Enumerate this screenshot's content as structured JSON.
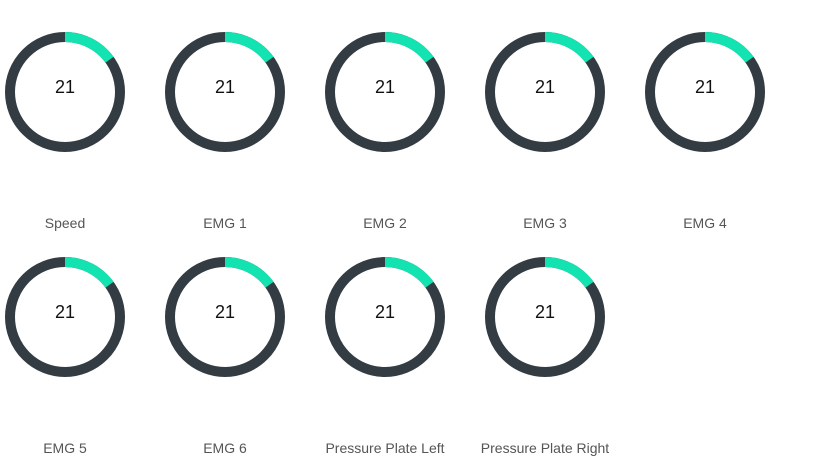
{
  "colors": {
    "track": "#333c43",
    "progress": "#13e3b0",
    "value_text": "#111111",
    "label_text": "#555555"
  },
  "gauges": [
    {
      "label": "Speed",
      "value": "21",
      "fraction": 0.15
    },
    {
      "label": "EMG 1",
      "value": "21",
      "fraction": 0.15
    },
    {
      "label": "EMG 2",
      "value": "21",
      "fraction": 0.15
    },
    {
      "label": "EMG 3",
      "value": "21",
      "fraction": 0.15
    },
    {
      "label": "EMG 4",
      "value": "21",
      "fraction": 0.15
    },
    {
      "label": "EMG 5",
      "value": "21",
      "fraction": 0.15
    },
    {
      "label": "EMG 6",
      "value": "21",
      "fraction": 0.15
    },
    {
      "label": "Pressure Plate Left",
      "value": "21",
      "fraction": 0.15
    },
    {
      "label": "Pressure Plate Right",
      "value": "21",
      "fraction": 0.15
    }
  ]
}
